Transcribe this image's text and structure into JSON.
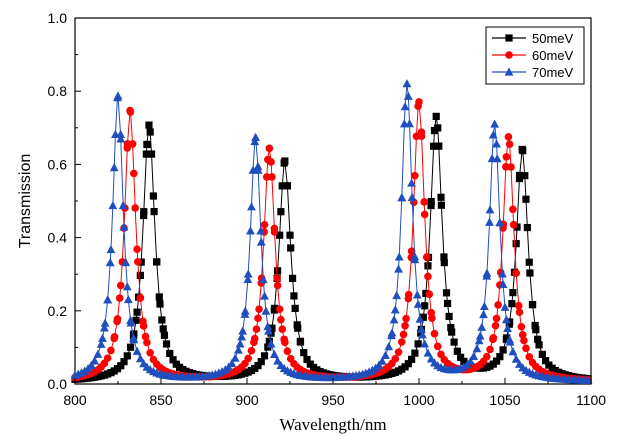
{
  "chart_data": {
    "type": "scatter",
    "xlabel": "Wavelength/nm",
    "ylabel": "Transmission",
    "xlim": [
      800,
      1100
    ],
    "ylim": [
      0.0,
      1.0
    ],
    "x_ticks": [
      "800",
      "850",
      "900",
      "950",
      "1000",
      "1050",
      "1100"
    ],
    "y_ticks": [
      "0.0",
      "0.2",
      "0.4",
      "0.6",
      "0.8",
      "1.0"
    ],
    "grid": false,
    "legend_position": "top-right",
    "series": [
      {
        "name": "50meV",
        "color": "#000000",
        "marker": "square",
        "peaks": [
          {
            "center": 843,
            "height": 0.7,
            "width": 4.2
          },
          {
            "center": 922,
            "height": 0.6,
            "width": 4.2
          },
          {
            "center": 1010,
            "height": 0.72,
            "width": 4.2
          },
          {
            "center": 1060,
            "height": 0.63,
            "width": 4.2
          }
        ]
      },
      {
        "name": "60meV",
        "color": "#ff0000",
        "marker": "circle",
        "peaks": [
          {
            "center": 832,
            "height": 0.74,
            "width": 4.0
          },
          {
            "center": 913,
            "height": 0.635,
            "width": 4.0
          },
          {
            "center": 1000,
            "height": 0.76,
            "width": 4.0
          },
          {
            "center": 1052,
            "height": 0.665,
            "width": 4.0
          }
        ]
      },
      {
        "name": "70meV",
        "color": "#1f4fbf",
        "marker": "triangle",
        "peaks": [
          {
            "center": 825,
            "height": 0.78,
            "width": 3.8
          },
          {
            "center": 905,
            "height": 0.665,
            "width": 3.8
          },
          {
            "center": 993,
            "height": 0.81,
            "width": 3.8
          },
          {
            "center": 1044,
            "height": 0.7,
            "width": 3.8
          }
        ]
      }
    ]
  }
}
